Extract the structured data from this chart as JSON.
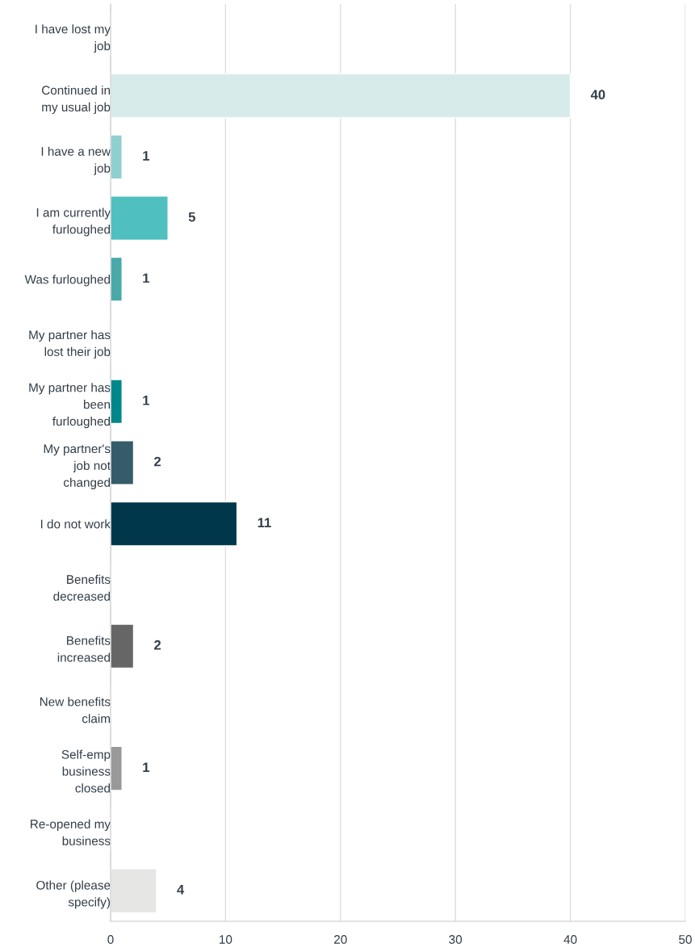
{
  "chart_data": {
    "type": "bar",
    "orientation": "horizontal",
    "categories": [
      "I have lost my job",
      "Continued in my usual job",
      "I have a new job",
      "I am currently furloughed",
      "Was furloughed",
      "My partner has lost their job",
      "My partner has been furloughed",
      "My partner's job not changed",
      "I do not work",
      "Benefits decreased",
      "Benefits increased",
      "New benefits claim",
      "Self-emp business closed",
      "Re-opened my business",
      "Other (please specify)"
    ],
    "values": [
      0,
      40,
      1,
      5,
      1,
      0,
      1,
      2,
      11,
      0,
      2,
      0,
      1,
      0,
      4
    ],
    "value_labels": [
      null,
      "40",
      "1",
      "5",
      "1",
      null,
      "1",
      "2",
      "11",
      null,
      "2",
      null,
      "1",
      null,
      "4"
    ],
    "colors": [
      null,
      "#d7ecea",
      "#8fcfd0",
      "#4fbfc0",
      "#48a9a8",
      null,
      "#00878a",
      "#355c6b",
      "#00374a",
      null,
      "#666666",
      null,
      "#999999",
      null,
      "#e6e6e5"
    ],
    "xlim": [
      0,
      50
    ],
    "xticks": [
      0,
      10,
      20,
      30,
      40,
      50
    ],
    "grid": "x"
  }
}
